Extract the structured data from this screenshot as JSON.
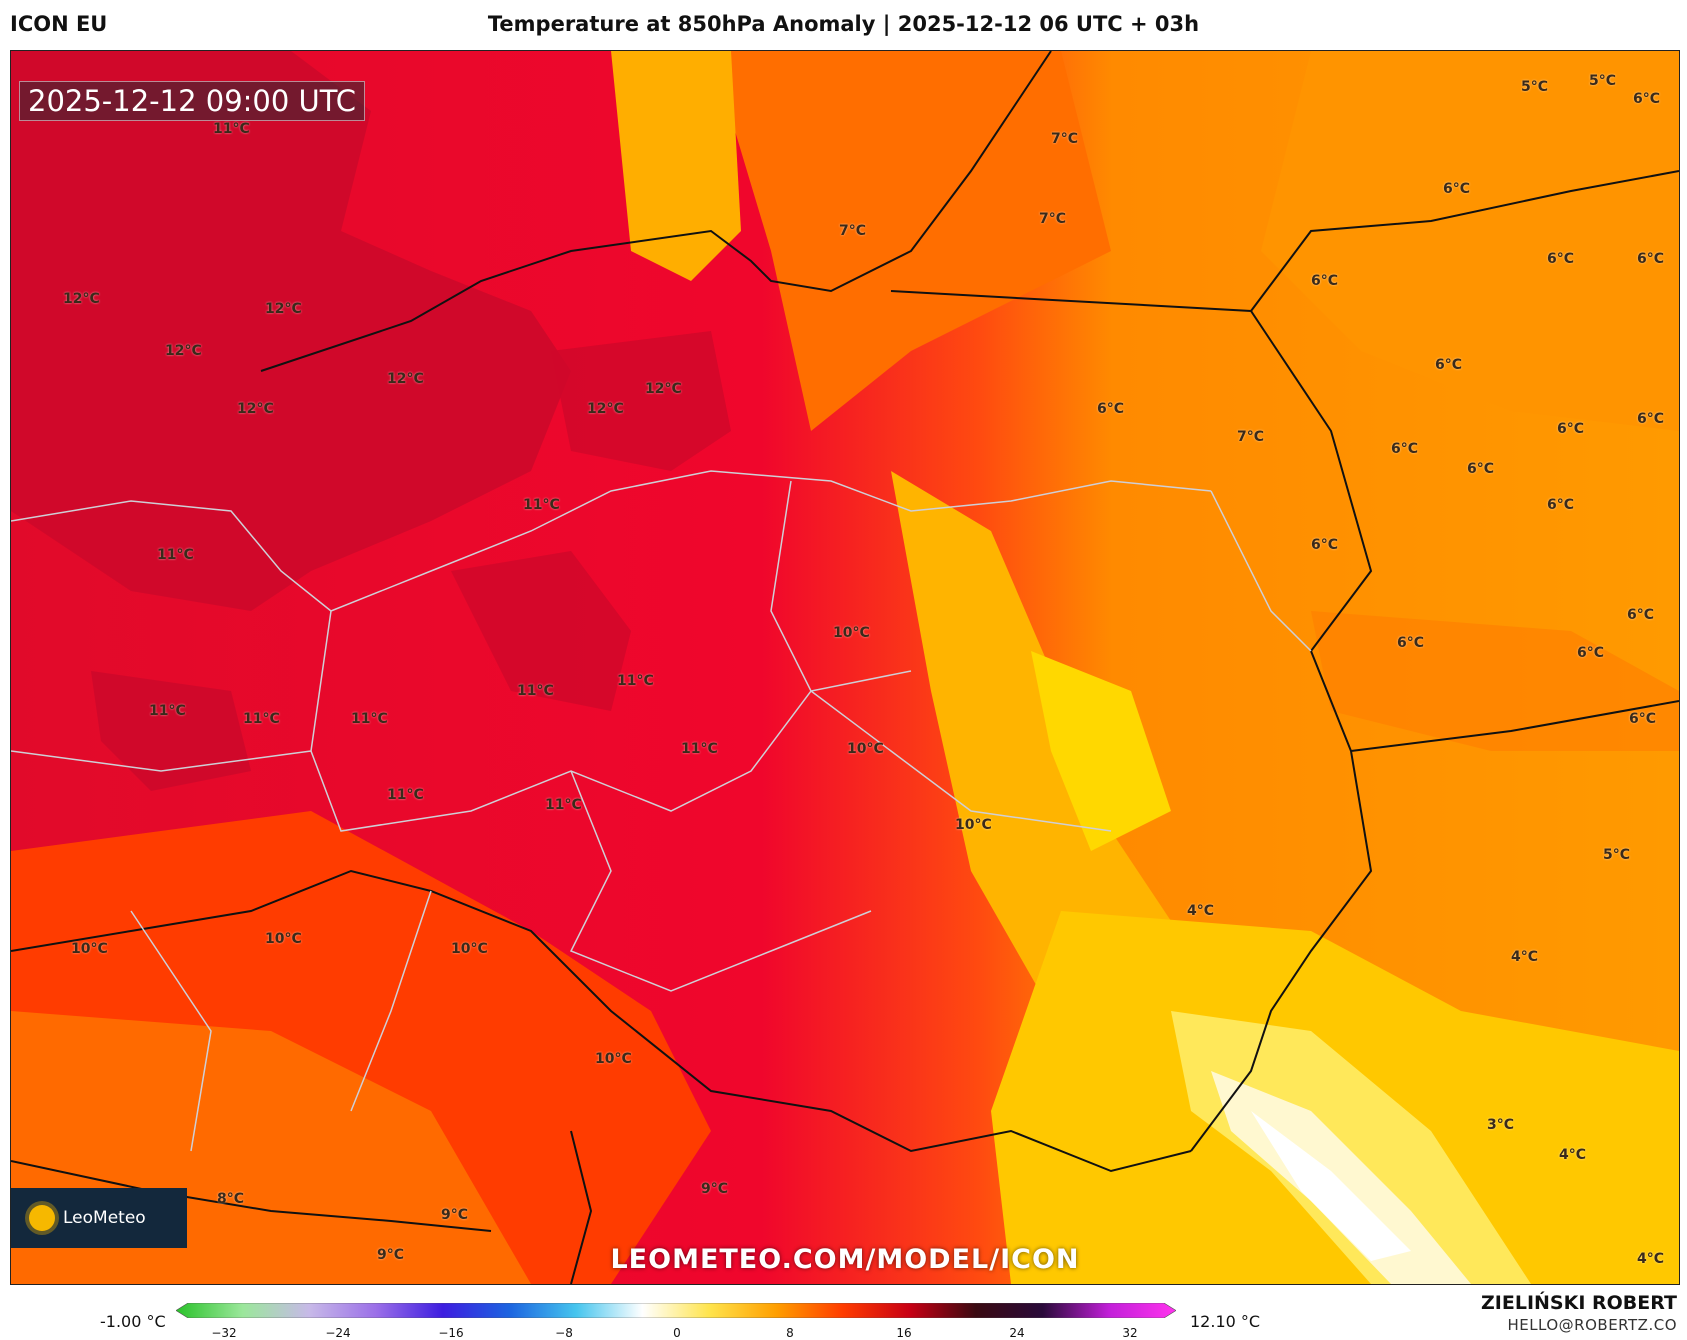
{
  "header": {
    "model": "ICON EU",
    "title": "Temperature at 850hPa Anomaly | 2025-12-12 06 UTC + 03h"
  },
  "map": {
    "timestamp": "2025-12-12 09:00 UTC",
    "watermark": "LEOMETEO.COM/MODEL/ICON",
    "logo": {
      "text": "LeoMeteo",
      "icon": "sun-icon"
    },
    "labels": [
      "11°C",
      "12°C",
      "12°C",
      "12°C",
      "12°C",
      "12°C",
      "12°C",
      "12°C",
      "11°C",
      "11°C",
      "11°C",
      "11°C",
      "11°C",
      "11°C",
      "11°C",
      "11°C",
      "11°C",
      "11°C",
      "10°C",
      "10°C",
      "10°C",
      "10°C",
      "10°C",
      "10°C",
      "10°C",
      "9°C",
      "9°C",
      "9°C",
      "8°C",
      "7°C",
      "7°C",
      "7°C",
      "7°C",
      "6°C",
      "6°C",
      "6°C",
      "6°C",
      "6°C",
      "6°C",
      "6°C",
      "6°C",
      "6°C",
      "6°C",
      "6°C",
      "6°C",
      "6°C",
      "6°C",
      "6°C",
      "6°C",
      "6°C",
      "5°C",
      "5°C",
      "5°C",
      "4°C",
      "4°C",
      "4°C",
      "4°C",
      "3°C"
    ]
  },
  "legend": {
    "min_label": "-1.00 °C",
    "max_label": "12.10 °C",
    "ticks": [
      "−32",
      "−24",
      "−16",
      "−8",
      "0",
      "8",
      "16",
      "24",
      "32"
    ],
    "colors": [
      "#29c229",
      "#9be79b",
      "#c7b9e8",
      "#9b6fe8",
      "#3d1de0",
      "#1c64e0",
      "#46c5ee",
      "#ffffff",
      "#ffe44d",
      "#ff9f00",
      "#ff3c00",
      "#c80014",
      "#3a0a12",
      "#2a0a3a",
      "#c21fd9",
      "#ff33ee"
    ]
  },
  "credits": {
    "author": "ZIELIŃSKI ROBERT",
    "contact": "HELLO@ROBERTZ.CO"
  }
}
